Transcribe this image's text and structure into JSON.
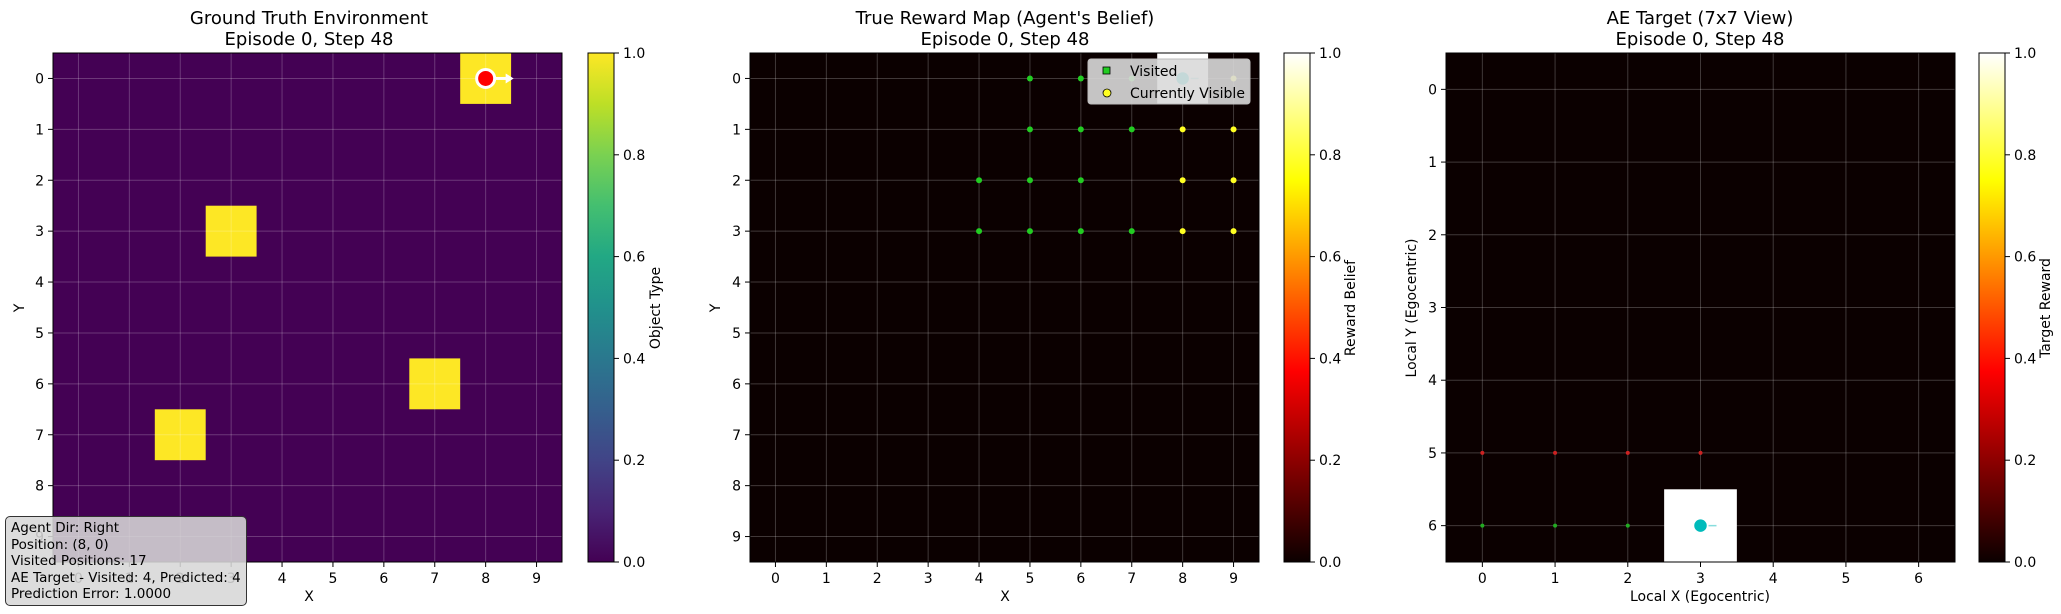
{
  "chart_data": [
    {
      "type": "heatmap",
      "title": [
        "Ground Truth Environment",
        "Episode 0, Step 48"
      ],
      "xlabel": "X",
      "ylabel": "Y",
      "xticks": [
        "0",
        "1",
        "2",
        "3",
        "4",
        "5",
        "6",
        "7",
        "8",
        "9"
      ],
      "yticks": [
        "0",
        "1",
        "2",
        "3",
        "4",
        "5",
        "6",
        "7",
        "8",
        "9"
      ],
      "grid": true,
      "colormap": "viridis",
      "background_value": 0.0,
      "cells": [
        {
          "x": 8,
          "y": 0,
          "value": 1.0
        },
        {
          "x": 3,
          "y": 3,
          "value": 1.0
        },
        {
          "x": 7,
          "y": 6,
          "value": 1.0
        },
        {
          "x": 2,
          "y": 7,
          "value": 1.0
        }
      ],
      "agent": {
        "x": 8,
        "y": 0,
        "dir": "right",
        "color": "#ff0000"
      },
      "colorbar": {
        "label": "Object Type",
        "range": [
          0.0,
          1.0
        ],
        "ticks": [
          "0.0",
          "0.2",
          "0.4",
          "0.6",
          "0.8",
          "1.0"
        ]
      },
      "info_box": {
        "lines": [
          "Agent Dir: Right",
          "Position: (8, 0)",
          "Visited Positions: 17",
          "AE Target - Visited: 4, Predicted: 4",
          "Prediction Error: 1.0000"
        ]
      }
    },
    {
      "type": "heatmap",
      "title": [
        "True Reward Map (Agent's Belief)",
        "Episode 0, Step 48"
      ],
      "xlabel": "X",
      "ylabel": "Y",
      "xticks": [
        "0",
        "1",
        "2",
        "3",
        "4",
        "5",
        "6",
        "7",
        "8",
        "9"
      ],
      "yticks": [
        "0",
        "1",
        "2",
        "3",
        "4",
        "5",
        "6",
        "7",
        "8",
        "9"
      ],
      "grid": true,
      "colormap": "hot",
      "background_value": 0.0,
      "cells": [
        {
          "x": 8,
          "y": 0,
          "value": 1.0
        }
      ],
      "agent": {
        "x": 8,
        "y": 0,
        "color": "#00cccc"
      },
      "visited": [
        [
          5,
          0
        ],
        [
          6,
          0
        ],
        [
          7,
          0
        ],
        [
          5,
          1
        ],
        [
          6,
          1
        ],
        [
          7,
          1
        ],
        [
          4,
          2
        ],
        [
          5,
          2
        ],
        [
          6,
          2
        ],
        [
          4,
          3
        ],
        [
          5,
          3
        ],
        [
          6,
          3
        ],
        [
          7,
          3
        ]
      ],
      "currently_visible": [
        [
          9,
          0
        ],
        [
          8,
          1
        ],
        [
          9,
          1
        ],
        [
          8,
          2
        ],
        [
          9,
          2
        ],
        [
          8,
          3
        ],
        [
          9,
          3
        ]
      ],
      "legend": {
        "position": "top-right",
        "entries": [
          "Visited",
          "Currently Visible"
        ]
      },
      "colors": {
        "visited": "#22cc22",
        "currently_visible": "#ffff22"
      },
      "colorbar": {
        "label": "Reward Belief",
        "range": [
          0.0,
          1.0
        ],
        "ticks": [
          "0.0",
          "0.2",
          "0.4",
          "0.6",
          "0.8",
          "1.0"
        ]
      }
    },
    {
      "type": "heatmap",
      "title": [
        "AE Target (7x7 View)",
        "Episode 0, Step 48"
      ],
      "xlabel": "Local X (Egocentric)",
      "ylabel": "Local Y (Egocentric)",
      "xticks": [
        "0",
        "1",
        "2",
        "3",
        "4",
        "5",
        "6"
      ],
      "yticks": [
        "0",
        "1",
        "2",
        "3",
        "4",
        "5",
        "6"
      ],
      "grid": true,
      "colormap": "hot",
      "background_value": 0.0,
      "cells": [
        {
          "x": 3,
          "y": 6,
          "value": 1.0
        }
      ],
      "agent": {
        "x": 3,
        "y": 6,
        "color": "#00bbbb"
      },
      "red_dots": [
        [
          0,
          5
        ],
        [
          1,
          5
        ],
        [
          2,
          5
        ],
        [
          3,
          5
        ]
      ],
      "green_dots": [
        [
          0,
          6
        ],
        [
          1,
          6
        ],
        [
          2,
          6
        ]
      ],
      "colorbar": {
        "label": "Target Reward",
        "range": [
          0.0,
          1.0
        ],
        "ticks": [
          "0.0",
          "0.2",
          "0.4",
          "0.6",
          "0.8",
          "1.0"
        ]
      }
    }
  ]
}
